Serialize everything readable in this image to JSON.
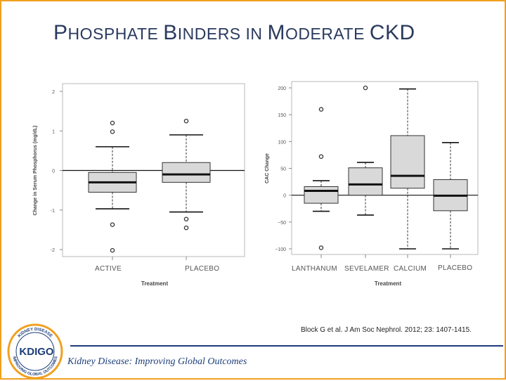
{
  "slide": {
    "title_parts": [
      "P",
      "HOSPHATE ",
      "B",
      "INDERS ",
      "IN ",
      "M",
      "ODERATE ",
      "CKD"
    ],
    "citation": "Block G et al. J Am Soc Nephrol. 2012; 23: 1407-1415.",
    "organization": "Kidney Disease: Improving Global Outcomes",
    "logo_text": "KDIGO",
    "logo_ring_top": "KIDNEY DISEASE",
    "logo_ring_bottom": "IMPROVING GLOBAL OUTCOMES"
  },
  "colors": {
    "accent_orange": "#f0a020",
    "brand_blue": "#1c3d7a",
    "box_fill": "#d9d9d9"
  },
  "chart_data": [
    {
      "type": "box",
      "ylabel": "Change in Serum Phosphorus (mg/dL)",
      "xlabel": "Treatment",
      "ylim": [
        -2,
        2
      ],
      "yticks": [
        2,
        1,
        0,
        -1,
        -2
      ],
      "ytick_labels": [
        "2",
        "1",
        "0",
        "-1",
        "-2"
      ],
      "reference_line": 0,
      "categories": [
        "ACTIVE",
        "PLACEBO"
      ],
      "boxes": [
        {
          "whisker_low": -0.97,
          "q1": -0.55,
          "median": -0.3,
          "q3": -0.05,
          "whisker_high": 0.6,
          "outliers": [
            1.2,
            0.98,
            -1.37,
            -2.02
          ]
        },
        {
          "whisker_low": -1.05,
          "q1": -0.3,
          "median": -0.1,
          "q3": 0.2,
          "whisker_high": 0.9,
          "outliers": [
            1.25,
            -1.23,
            -1.45
          ]
        }
      ]
    },
    {
      "type": "box",
      "ylabel": "CAC Change",
      "xlabel": "Treatment",
      "ylim": [
        -100,
        200
      ],
      "yticks": [
        200,
        150,
        100,
        50,
        0,
        -50,
        -100
      ],
      "ytick_labels": [
        "200",
        "150",
        "100",
        "50",
        "0",
        "−50",
        "−100"
      ],
      "reference_line": 0,
      "categories": [
        "LANTHANUM",
        "SEVELAMER",
        "CALCIUM",
        "PLACEBO"
      ],
      "boxes": [
        {
          "whisker_low": -30,
          "q1": -15,
          "median": 8,
          "q3": 16,
          "whisker_high": 27,
          "outliers": [
            160,
            72,
            -98
          ]
        },
        {
          "whisker_low": -37,
          "q1": 0,
          "median": 20,
          "q3": 51,
          "whisker_high": 61,
          "outliers": [
            200
          ]
        },
        {
          "whisker_low": -100,
          "q1": 13,
          "median": 36,
          "q3": 111,
          "whisker_high": 198,
          "outliers": []
        },
        {
          "whisker_low": -100,
          "q1": -29,
          "median": -1,
          "q3": 29,
          "whisker_high": 98,
          "outliers": []
        }
      ]
    }
  ]
}
